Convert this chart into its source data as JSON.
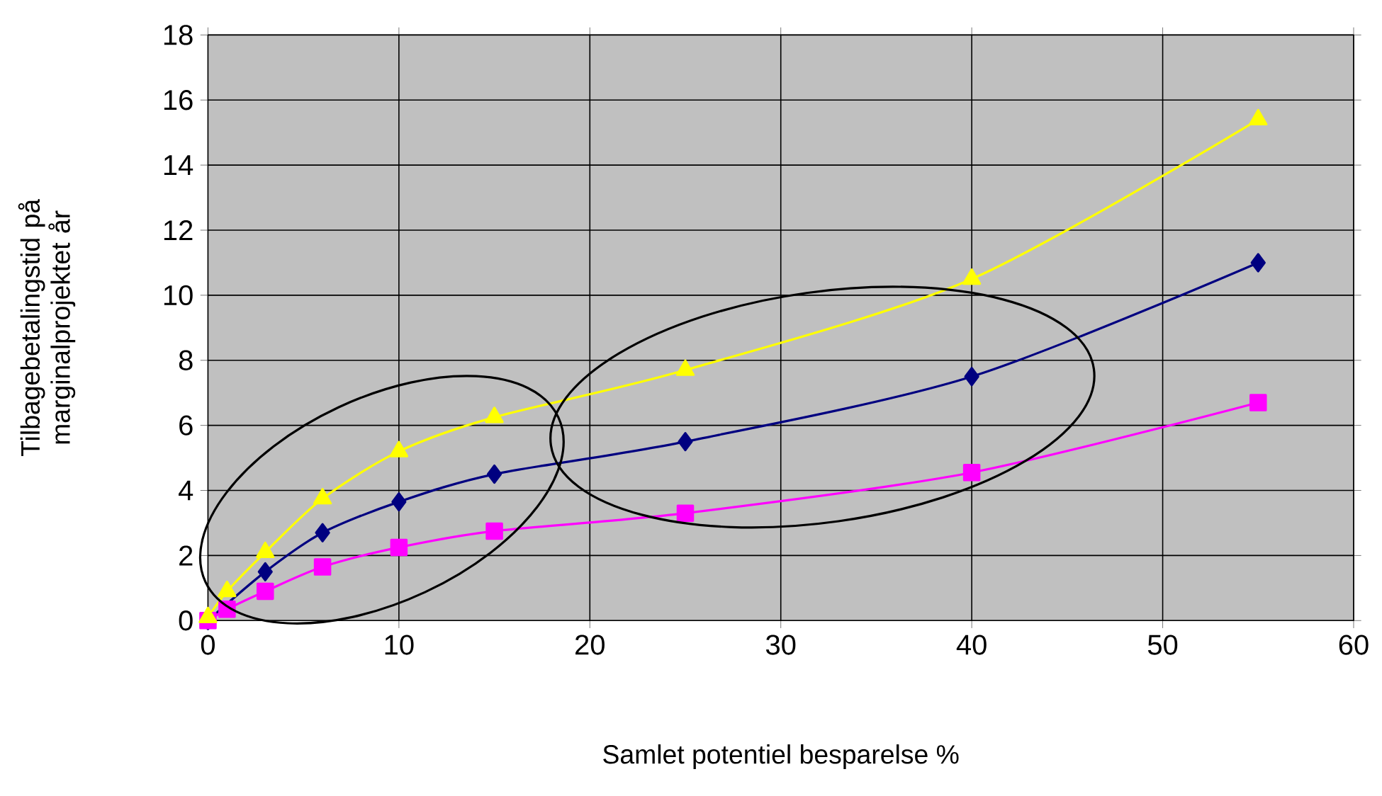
{
  "chart_data": {
    "type": "line",
    "xlabel": "Samlet potentiel besparelse %",
    "ylabel": "Tilbagebetalingstid på marginalprojektet år",
    "xlim": [
      0,
      60
    ],
    "ylim": [
      0,
      18
    ],
    "xticks": [
      0,
      10,
      20,
      30,
      40,
      50,
      60
    ],
    "yticks": [
      0,
      2,
      4,
      6,
      8,
      10,
      12,
      14,
      16,
      18
    ],
    "grid": true,
    "series": [
      {
        "color": "#000080",
        "marker": "diamond",
        "x": [
          0,
          1,
          3,
          6,
          10,
          15,
          25,
          40,
          55
        ],
        "values": [
          0,
          null,
          1.5,
          2.7,
          3.65,
          4.5,
          5.5,
          7.5,
          11
        ]
      },
      {
        "color": "#ff00ff",
        "marker": "square",
        "x": [
          0,
          1,
          3,
          6,
          10,
          15,
          25,
          40,
          55
        ],
        "values": [
          0,
          0.35,
          0.9,
          1.65,
          2.25,
          2.75,
          3.3,
          4.55,
          6.7
        ]
      },
      {
        "color": "#ffff00",
        "marker": "triangle",
        "x": [
          0,
          1,
          3,
          6,
          10,
          15,
          25,
          40,
          55
        ],
        "values": [
          0.1,
          0.9,
          2.1,
          3.75,
          5.2,
          6.25,
          7.7,
          10.5,
          15.4
        ]
      }
    ]
  }
}
